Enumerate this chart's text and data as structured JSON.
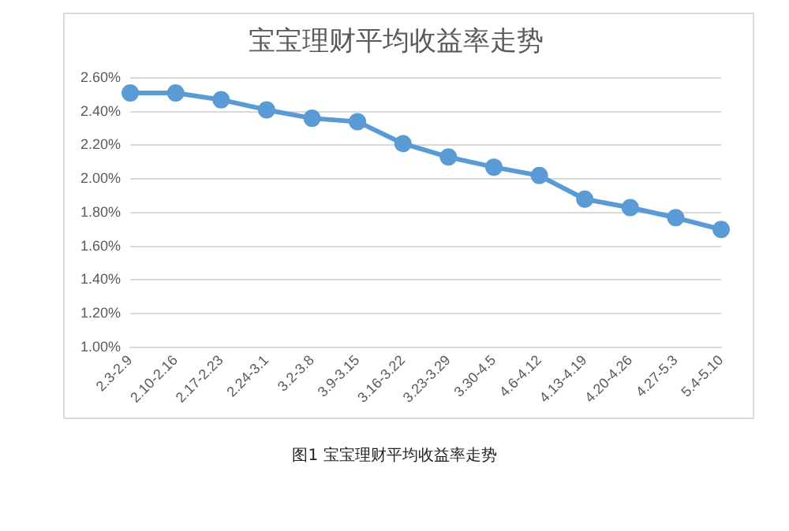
{
  "chart_data": {
    "type": "line",
    "title": "宝宝理财平均收益率走势",
    "categories": [
      "2.3-2.9",
      "2.10-2.16",
      "2.17-2.23",
      "2.24-3.1",
      "3.2-3.8",
      "3.9-3.15",
      "3.16-3.22",
      "3.23-3.29",
      "3.30-4.5",
      "4.6-4.12",
      "4.13-4.19",
      "4.20-4.26",
      "4.27-5.3",
      "5.4-5.10"
    ],
    "series": [
      {
        "color": "#5b9bd5",
        "values": [
          2.51,
          2.51,
          2.47,
          2.41,
          2.36,
          2.34,
          2.21,
          2.13,
          2.07,
          2.02,
          1.88,
          1.83,
          1.77,
          1.7
        ]
      }
    ],
    "ylim": [
      1.0,
      2.6
    ],
    "yticks": [
      {
        "value": 1.0,
        "label": "1.00%"
      },
      {
        "value": 1.2,
        "label": "1.20%"
      },
      {
        "value": 1.4,
        "label": "1.40%"
      },
      {
        "value": 1.6,
        "label": "1.60%"
      },
      {
        "value": 1.8,
        "label": "1.80%"
      },
      {
        "value": 2.0,
        "label": "2.00%"
      },
      {
        "value": 2.2,
        "label": "2.20%"
      },
      {
        "value": 2.4,
        "label": "2.40%"
      },
      {
        "value": 2.6,
        "label": "2.60%"
      }
    ],
    "grid": "y",
    "legend": false,
    "marker": "circle",
    "line_style": "solid",
    "annotations": [
      "图1 宝宝理财平均收益率走势"
    ]
  }
}
